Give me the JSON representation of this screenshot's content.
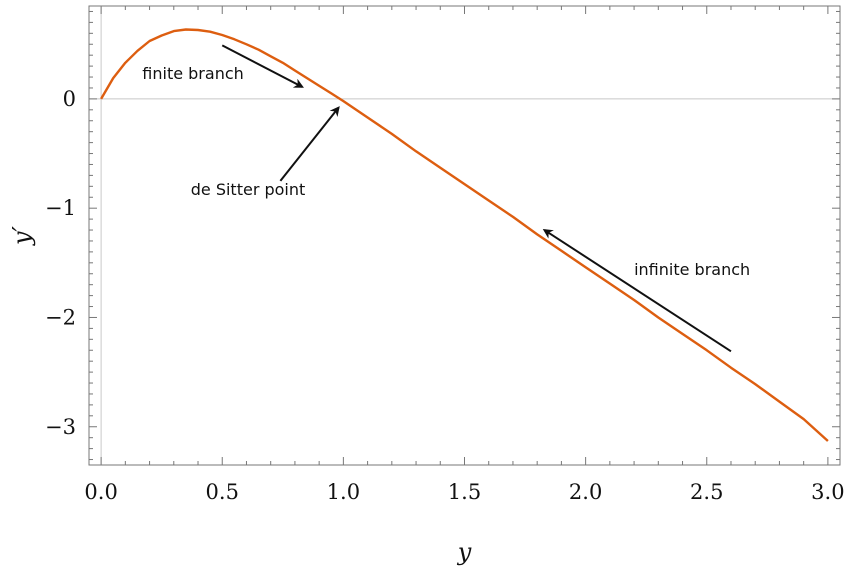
{
  "chart_data": {
    "type": "line",
    "xlabel": "y",
    "ylabel": "y′",
    "xlim": [
      -0.05,
      3.05
    ],
    "ylim": [
      -3.35,
      0.85
    ],
    "x_ticks": [
      0.0,
      0.5,
      1.0,
      1.5,
      2.0,
      2.5,
      3.0
    ],
    "x_tick_labels": [
      "0.0",
      "0.5",
      "1.0",
      "1.5",
      "2.0",
      "2.5",
      "3.0"
    ],
    "y_ticks": [
      0,
      -1,
      -2,
      -3
    ],
    "y_tick_labels": [
      "0",
      "−1",
      "−2",
      "−3"
    ],
    "grid": false,
    "series": [
      {
        "color": "#dd5e10",
        "points": [
          [
            0.0,
            0.0
          ],
          [
            0.05,
            0.19
          ],
          [
            0.1,
            0.33
          ],
          [
            0.15,
            0.44
          ],
          [
            0.2,
            0.53
          ],
          [
            0.25,
            0.58
          ],
          [
            0.3,
            0.62
          ],
          [
            0.35,
            0.635
          ],
          [
            0.4,
            0.63
          ],
          [
            0.45,
            0.615
          ],
          [
            0.5,
            0.585
          ],
          [
            0.55,
            0.545
          ],
          [
            0.6,
            0.5
          ],
          [
            0.65,
            0.45
          ],
          [
            0.7,
            0.39
          ],
          [
            0.75,
            0.33
          ],
          [
            0.8,
            0.26
          ],
          [
            0.85,
            0.19
          ],
          [
            0.9,
            0.12
          ],
          [
            0.95,
            0.05
          ],
          [
            1.0,
            -0.02
          ],
          [
            1.1,
            -0.17
          ],
          [
            1.2,
            -0.32
          ],
          [
            1.3,
            -0.48
          ],
          [
            1.4,
            -0.63
          ],
          [
            1.5,
            -0.78
          ],
          [
            1.6,
            -0.93
          ],
          [
            1.7,
            -1.08
          ],
          [
            1.8,
            -1.24
          ],
          [
            1.9,
            -1.39
          ],
          [
            2.0,
            -1.54
          ],
          [
            2.1,
            -1.69
          ],
          [
            2.2,
            -1.84
          ],
          [
            2.3,
            -2.0
          ],
          [
            2.4,
            -2.15
          ],
          [
            2.5,
            -2.3
          ],
          [
            2.6,
            -2.46
          ],
          [
            2.7,
            -2.61
          ],
          [
            2.8,
            -2.77
          ],
          [
            2.9,
            -2.93
          ],
          [
            3.0,
            -3.13
          ]
        ]
      }
    ],
    "annotations": [
      {
        "text": "finite branch",
        "x": 0.17,
        "y": 0.18,
        "arrow_from": [
          0.5,
          0.49
        ],
        "arrow_to": [
          0.83,
          0.11
        ]
      },
      {
        "text": "de Sitter point",
        "x": 0.37,
        "y": -0.88,
        "arrow_from": [
          0.74,
          -0.75
        ],
        "arrow_to": [
          0.98,
          -0.08
        ]
      },
      {
        "text": "infinite branch",
        "x": 2.2,
        "y": -1.61,
        "arrow_from": [
          2.6,
          -2.31
        ],
        "arrow_to": [
          1.83,
          -1.2
        ]
      }
    ]
  },
  "colors": {
    "curve": "#dd5e10",
    "frame": "#777777",
    "zero_line": "#c8c8c8",
    "text": "#111111"
  }
}
